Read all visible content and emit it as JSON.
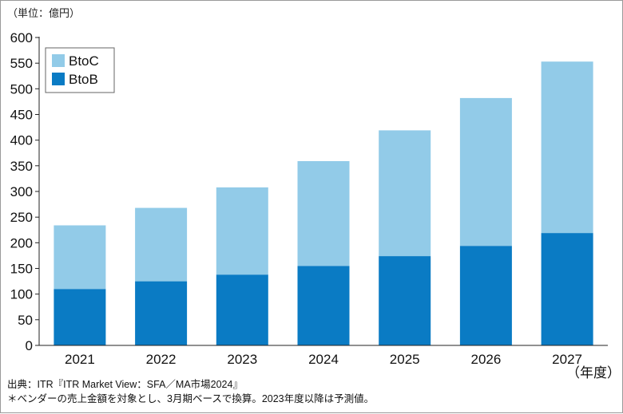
{
  "chart_data": {
    "type": "bar",
    "stacked": true,
    "unit_label": "（単位：億円）",
    "categories": [
      "2021",
      "2022",
      "2023",
      "2024",
      "2025",
      "2026",
      "2027"
    ],
    "x_unit_label": "（年度）",
    "series": [
      {
        "name": "BtoB",
        "color": "#0a7bc4",
        "values": [
          110,
          125,
          138,
          155,
          174,
          194,
          219
        ]
      },
      {
        "name": "BtoC",
        "color": "#92cbe8",
        "values": [
          124,
          143,
          170,
          204,
          245,
          288,
          334
        ]
      }
    ],
    "legend_order": [
      "BtoC",
      "BtoB"
    ],
    "legend_position": "top-left",
    "ylim": [
      0,
      600
    ],
    "yticks": [
      "0",
      "50",
      "100",
      "150",
      "200",
      "250",
      "300",
      "350",
      "400",
      "450",
      "500",
      "550",
      "600"
    ],
    "grid": false
  },
  "footnotes": [
    "出典：ITR『ITR Market View：SFA／MA市場2024』",
    "＊ベンダーの売上金額を対象とし、3月期ベースで換算。2023年度以降は予測値。"
  ]
}
